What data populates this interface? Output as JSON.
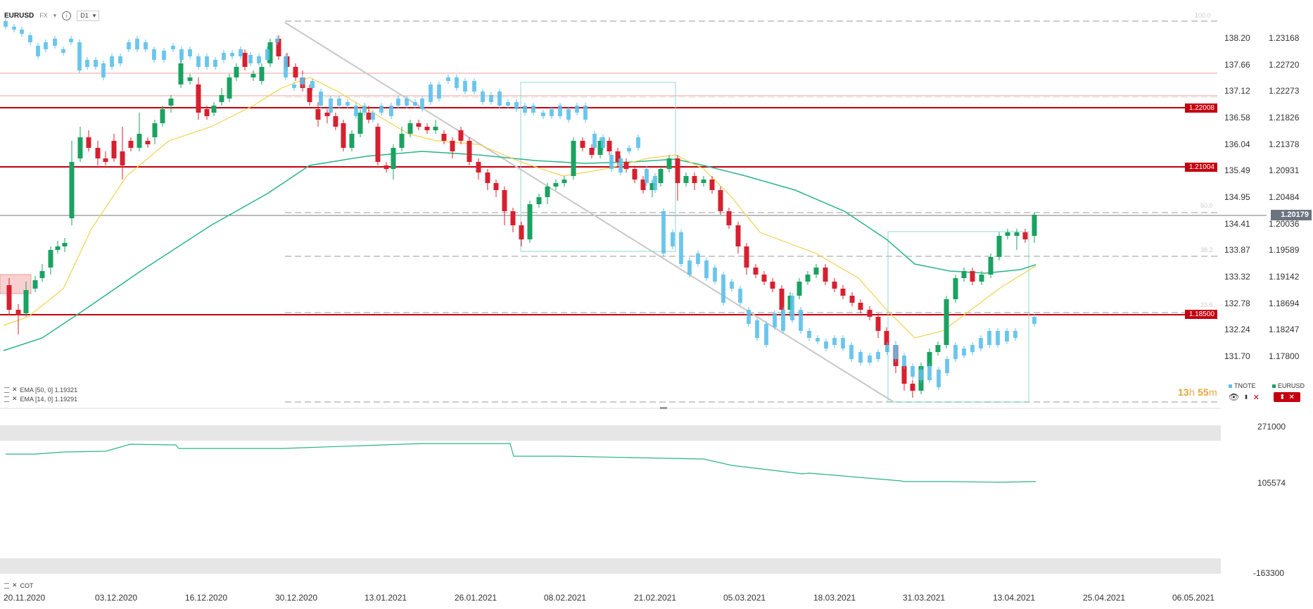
{
  "header": {
    "symbol": "EURUSD",
    "type": "FX",
    "timeframe": "D1",
    "icons": [
      "dropdown-chevron-icon",
      "info-icon"
    ]
  },
  "price_axis_tnote": [
    "138.20",
    "137.66",
    "137.12",
    "136.58",
    "136.04",
    "135.49",
    "134.95",
    "134.41",
    "133.87",
    "133.32",
    "132.78",
    "132.24",
    "131.70"
  ],
  "price_axis_eurusd": [
    "1.23168",
    "1.22720",
    "1.22273",
    "1.21826",
    "1.21378",
    "1.20931",
    "1.20484",
    "1.20036",
    "1.19589",
    "1.19142",
    "1.18694",
    "1.18247",
    "1.17800"
  ],
  "level_tags": [
    "1.22008",
    "1.21004",
    "1.18500"
  ],
  "current_price": "1.20179",
  "fib_labels": [
    "100.0",
    "50.0",
    "38.2",
    "23.6"
  ],
  "indicators": {
    "ema50": "EMA [50, 0] 1.19321",
    "ema14": "EMA [14, 0] 1.19291"
  },
  "timer": {
    "hours": "13",
    "h": "h",
    "minutes": "55",
    "m": "m"
  },
  "series_legend": [
    {
      "name": "TNOTE",
      "color": "#5bc0eb"
    },
    {
      "name": "EURUSD",
      "color": "#1aa260"
    }
  ],
  "sub_panel": {
    "label": "COT",
    "axis": [
      "271000",
      "105574",
      "-163300"
    ]
  },
  "x_axis": [
    "20.11.2020",
    "03.12.2020",
    "16.12.2020",
    "30.12.2020",
    "13.01.2021",
    "26.01.2021",
    "08.02.2021",
    "21.02.2021",
    "05.03.2021",
    "18.03.2021",
    "31.03.2021",
    "13.04.2021",
    "25.04.2021",
    "06.05.2021"
  ],
  "colors": {
    "bull": "#1aa260",
    "bear": "#d7202f",
    "tnote": "#5bc0eb",
    "ema50": "#2bb38a",
    "ema14": "#f3d24c",
    "level": "#c4000f"
  }
}
